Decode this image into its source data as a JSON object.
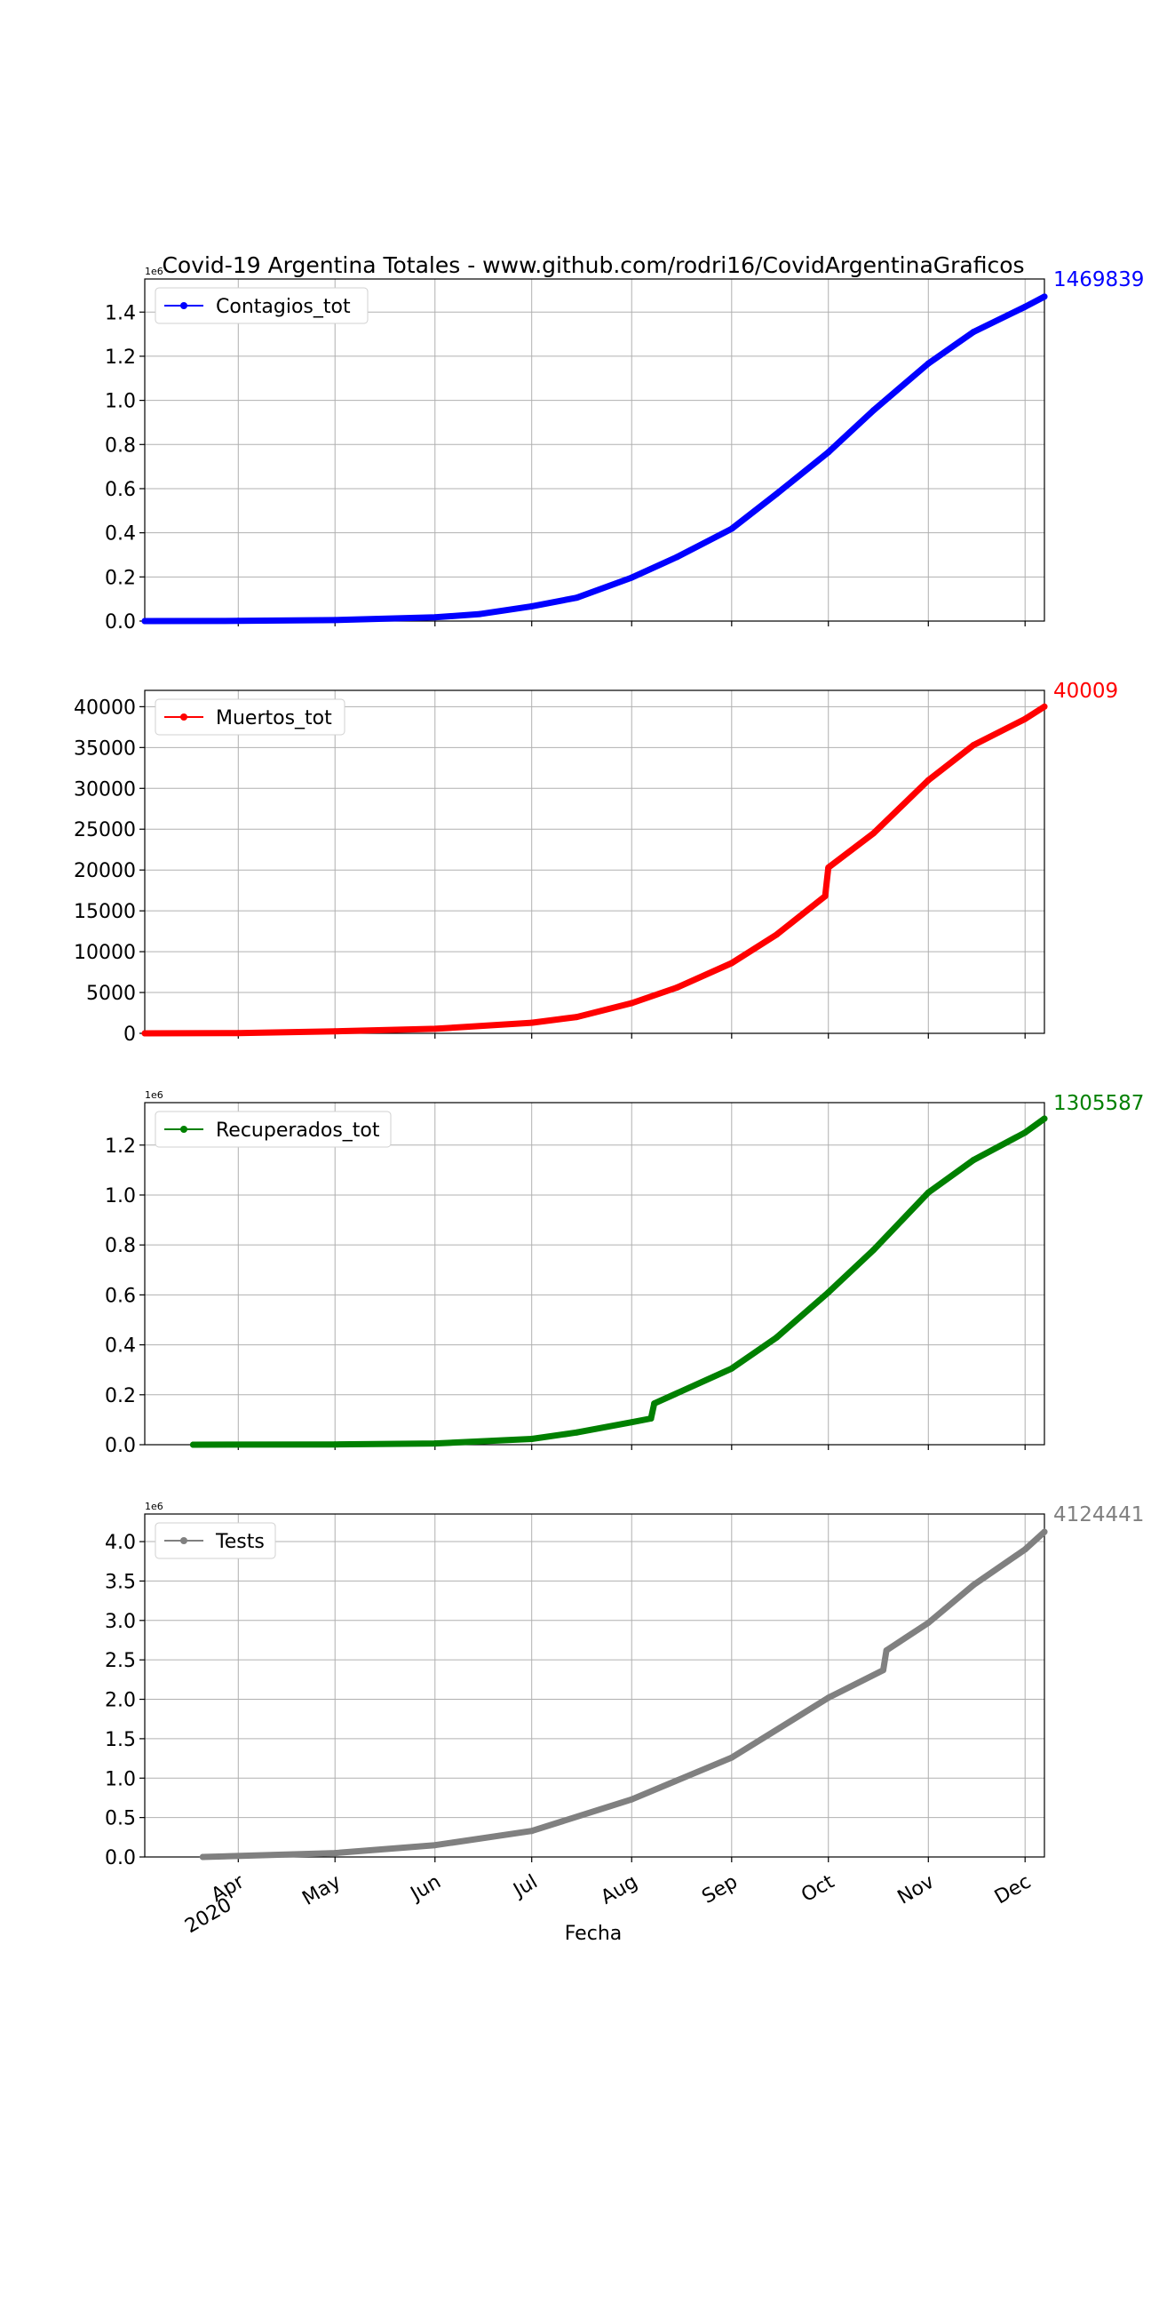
{
  "title": "Covid-19 Argentina Totales - www.github.com/rodri16/CovidArgentinaGraficos",
  "xlabel": "Fecha",
  "colors": {
    "grid": "#b0b0b0",
    "axis": "#000000",
    "background": "#ffffff"
  },
  "x_axis": {
    "xlim": [
      "2020-03-03",
      "2020-12-07"
    ],
    "ticks": [
      {
        "date": "2020-04-01",
        "label": "Apr",
        "sublabel": "2020"
      },
      {
        "date": "2020-05-01",
        "label": "May",
        "sublabel": ""
      },
      {
        "date": "2020-06-01",
        "label": "Jun",
        "sublabel": ""
      },
      {
        "date": "2020-07-01",
        "label": "Jul",
        "sublabel": ""
      },
      {
        "date": "2020-08-01",
        "label": "Aug",
        "sublabel": ""
      },
      {
        "date": "2020-09-01",
        "label": "Sep",
        "sublabel": ""
      },
      {
        "date": "2020-10-01",
        "label": "Oct",
        "sublabel": ""
      },
      {
        "date": "2020-11-01",
        "label": "Nov",
        "sublabel": ""
      },
      {
        "date": "2020-12-01",
        "label": "Dec",
        "sublabel": ""
      }
    ]
  },
  "chart_data": [
    {
      "type": "line",
      "series": [
        {
          "name": "Contagios_tot",
          "color": "#0000ff"
        }
      ],
      "last_value_label": "1469839",
      "legend_position": "upper-left",
      "grid": true,
      "offset_label": "1e6",
      "ylim": [
        0,
        1.55
      ],
      "yticks": [
        "0.0",
        "0.2",
        "0.4",
        "0.6",
        "0.8",
        "1.0",
        "1.2",
        "1.4"
      ],
      "points": [
        [
          "2020-03-03",
          0
        ],
        [
          "2020-04-01",
          0.001
        ],
        [
          "2020-05-01",
          0.0045
        ],
        [
          "2020-06-01",
          0.017
        ],
        [
          "2020-06-15",
          0.032
        ],
        [
          "2020-07-01",
          0.067
        ],
        [
          "2020-07-15",
          0.106
        ],
        [
          "2020-08-01",
          0.197
        ],
        [
          "2020-08-15",
          0.29
        ],
        [
          "2020-09-01",
          0.418
        ],
        [
          "2020-09-15",
          0.577
        ],
        [
          "2020-10-01",
          0.765
        ],
        [
          "2020-10-15",
          0.955
        ],
        [
          "2020-11-01",
          1.167
        ],
        [
          "2020-11-15",
          1.31
        ],
        [
          "2020-12-01",
          1.424
        ],
        [
          "2020-12-07",
          1.47
        ]
      ]
    },
    {
      "type": "line",
      "series": [
        {
          "name": "Muertos_tot",
          "color": "#ff0000"
        }
      ],
      "last_value_label": "40009",
      "legend_position": "upper-left",
      "grid": true,
      "offset_label": "",
      "ylim": [
        0,
        42000
      ],
      "yticks": [
        "0",
        "5000",
        "10000",
        "15000",
        "20000",
        "25000",
        "30000",
        "35000",
        "40000"
      ],
      "points": [
        [
          "2020-03-03",
          0
        ],
        [
          "2020-04-01",
          30
        ],
        [
          "2020-05-01",
          250
        ],
        [
          "2020-06-01",
          560
        ],
        [
          "2020-07-01",
          1300
        ],
        [
          "2020-07-15",
          2000
        ],
        [
          "2020-08-01",
          3700
        ],
        [
          "2020-08-15",
          5600
        ],
        [
          "2020-09-01",
          8600
        ],
        [
          "2020-09-15",
          12100
        ],
        [
          "2020-09-30",
          16800
        ],
        [
          "2020-10-01",
          20300
        ],
        [
          "2020-10-15",
          24500
        ],
        [
          "2020-11-01",
          31000
        ],
        [
          "2020-11-15",
          35300
        ],
        [
          "2020-12-01",
          38500
        ],
        [
          "2020-12-07",
          40009
        ]
      ]
    },
    {
      "type": "line",
      "series": [
        {
          "name": "Recuperados_tot",
          "color": "#008000"
        }
      ],
      "last_value_label": "1305587",
      "legend_position": "upper-left",
      "grid": true,
      "offset_label": "1e6",
      "ylim": [
        0,
        1.37
      ],
      "yticks": [
        "0.0",
        "0.2",
        "0.4",
        "0.6",
        "0.8",
        "1.0",
        "1.2"
      ],
      "points": [
        [
          "2020-03-18",
          0
        ],
        [
          "2020-05-01",
          0.001
        ],
        [
          "2020-06-01",
          0.005
        ],
        [
          "2020-07-01",
          0.023
        ],
        [
          "2020-07-15",
          0.049
        ],
        [
          "2020-08-01",
          0.09
        ],
        [
          "2020-08-07",
          0.105
        ],
        [
          "2020-08-08",
          0.165
        ],
        [
          "2020-09-01",
          0.305
        ],
        [
          "2020-09-15",
          0.43
        ],
        [
          "2020-10-01",
          0.61
        ],
        [
          "2020-10-15",
          0.78
        ],
        [
          "2020-11-01",
          1.01
        ],
        [
          "2020-11-15",
          1.14
        ],
        [
          "2020-12-01",
          1.25
        ],
        [
          "2020-12-07",
          1.306
        ]
      ]
    },
    {
      "type": "line",
      "series": [
        {
          "name": "Tests",
          "color": "#808080"
        }
      ],
      "last_value_label": "4124441",
      "legend_position": "upper-left",
      "grid": true,
      "offset_label": "1e6",
      "ylim": [
        0,
        4.35
      ],
      "yticks": [
        "0.0",
        "0.5",
        "1.0",
        "1.5",
        "2.0",
        "2.5",
        "3.0",
        "3.5",
        "4.0"
      ],
      "points": [
        [
          "2020-03-21",
          0
        ],
        [
          "2020-05-01",
          0.05
        ],
        [
          "2020-06-01",
          0.15
        ],
        [
          "2020-07-01",
          0.33
        ],
        [
          "2020-08-01",
          0.73
        ],
        [
          "2020-09-01",
          1.26
        ],
        [
          "2020-10-01",
          2.02
        ],
        [
          "2020-10-18",
          2.37
        ],
        [
          "2020-10-19",
          2.62
        ],
        [
          "2020-11-01",
          2.97
        ],
        [
          "2020-11-15",
          3.45
        ],
        [
          "2020-12-01",
          3.9
        ],
        [
          "2020-12-07",
          4.124
        ]
      ]
    }
  ]
}
